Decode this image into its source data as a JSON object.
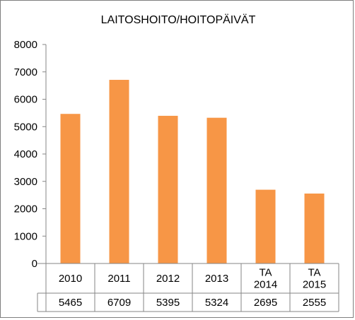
{
  "chart_data": {
    "type": "bar",
    "title": "LAITOSHOITO/HOITOPÄIVÄT",
    "categories": [
      [
        "2010"
      ],
      [
        "2011"
      ],
      [
        "2012"
      ],
      [
        "2013"
      ],
      [
        "TA",
        "2014"
      ],
      [
        "TA",
        "2015"
      ]
    ],
    "values": [
      5465,
      6709,
      5395,
      5324,
      2695,
      2555
    ],
    "data_table_values": [
      "5465",
      "6709",
      "5395",
      "5324",
      "2695",
      "2555"
    ],
    "y_ticks": [
      "0",
      "1000",
      "2000",
      "3000",
      "4000",
      "5000",
      "6000",
      "7000",
      "8000"
    ],
    "ylim": [
      0,
      8000
    ],
    "xlabel": "",
    "ylabel": "",
    "grid": false,
    "legend": "none",
    "bar_color": "#F79646",
    "data_table": true
  }
}
